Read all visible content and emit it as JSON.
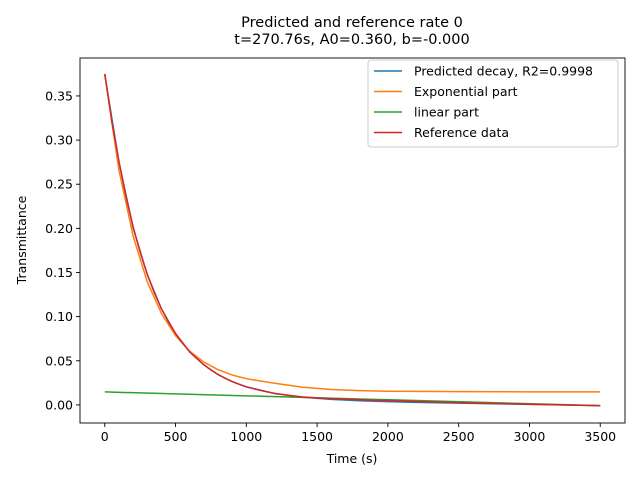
{
  "chart_data": {
    "type": "line",
    "title": "Predicted and reference rate 0",
    "subtitle": "t=270.76s, A0=0.360, b=-0.000",
    "xlabel": "Time (s)",
    "ylabel": "Transmittance",
    "xlim": [
      -175,
      3675
    ],
    "ylim": [
      -0.0205,
      0.393
    ],
    "xticks": [
      0,
      500,
      1000,
      1500,
      2000,
      2500,
      3000,
      3500
    ],
    "yticks": [
      0.0,
      0.05,
      0.1,
      0.15,
      0.2,
      0.25,
      0.3,
      0.35
    ],
    "x_tick_labels": [
      "0",
      "500",
      "1000",
      "1500",
      "2000",
      "2500",
      "3000",
      "3500"
    ],
    "y_tick_labels": [
      "0.00",
      "0.05",
      "0.10",
      "0.15",
      "0.20",
      "0.25",
      "0.30",
      "0.35"
    ],
    "grid": false,
    "legend_position": "top-right",
    "series": [
      {
        "name": "Predicted decay, R2=0.9998",
        "color": "#1f77b4",
        "x": [
          0,
          100,
          200,
          300,
          400,
          500,
          600,
          700,
          800,
          900,
          1000,
          1200,
          1400,
          1600,
          1800,
          2000,
          2200,
          2400,
          2600,
          2800,
          3000,
          3200,
          3400,
          3500
        ],
        "y": [
          0.3745,
          0.2752,
          0.2008,
          0.1477,
          0.1089,
          0.0807,
          0.0602,
          0.0453,
          0.0343,
          0.0263,
          0.0204,
          0.0129,
          0.0087,
          0.0062,
          0.0047,
          0.0037,
          0.0029,
          0.0023,
          0.0017,
          0.0011,
          0.0006,
          0.0,
          -0.0005,
          -0.0008
        ]
      },
      {
        "name": "Exponential part",
        "color": "#ff7f0e",
        "x": [
          0,
          100,
          200,
          300,
          400,
          500,
          600,
          700,
          800,
          900,
          1000,
          1200,
          1400,
          1600,
          1800,
          2000,
          2500,
          3000,
          3500
        ],
        "y": [
          0.3745,
          0.266,
          0.1915,
          0.1395,
          0.1037,
          0.0784,
          0.0608,
          0.0485,
          0.0399,
          0.0339,
          0.0297,
          0.0245,
          0.02,
          0.0175,
          0.0162,
          0.0155,
          0.015,
          0.0148,
          0.0147
        ]
      },
      {
        "name": "linear part",
        "color": "#2ca02c",
        "x": [
          0,
          3500
        ],
        "y": [
          0.0147,
          -0.0008
        ]
      },
      {
        "name": "Reference data",
        "color": "#d62728",
        "x": [
          0,
          50,
          100,
          150,
          200,
          250,
          300,
          350,
          400,
          450,
          500,
          550,
          600,
          650,
          700,
          750,
          800,
          850,
          900,
          950,
          1000,
          1100,
          1200,
          1300,
          1400,
          1500,
          1600,
          1700,
          1800,
          1900,
          2000,
          2100,
          2200,
          2300,
          2400,
          2500,
          2600,
          2700,
          2800,
          2900,
          3000,
          3100,
          3200,
          3300,
          3400,
          3500
        ],
        "y": [
          0.375,
          0.321,
          0.276,
          0.236,
          0.202,
          0.173,
          0.148,
          0.127,
          0.109,
          0.094,
          0.081,
          0.07,
          0.06,
          0.0525,
          0.0455,
          0.0395,
          0.0345,
          0.0302,
          0.0265,
          0.0233,
          0.0205,
          0.0165,
          0.013,
          0.0108,
          0.009,
          0.008,
          0.007,
          0.0065,
          0.0058,
          0.0052,
          0.0048,
          0.0043,
          0.0038,
          0.0034,
          0.003,
          0.0026,
          0.0022,
          0.0018,
          0.0015,
          0.0011,
          0.0008,
          0.0005,
          0.0002,
          -0.0003,
          -0.0006,
          -0.001
        ]
      }
    ]
  }
}
